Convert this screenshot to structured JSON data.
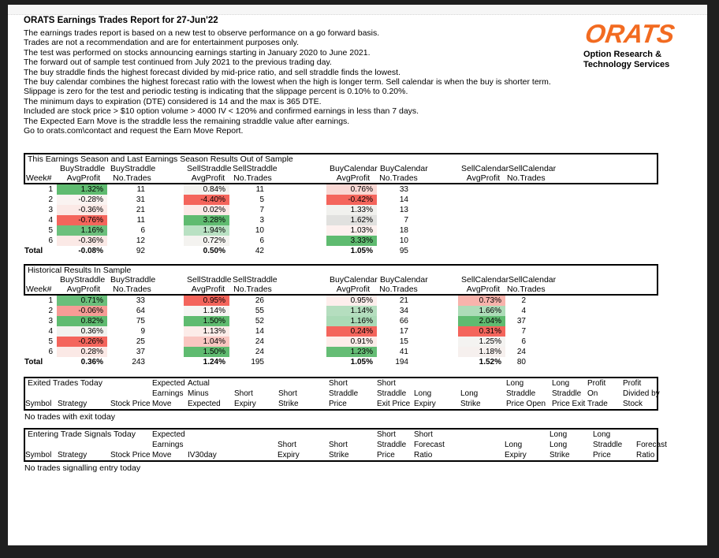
{
  "header": {
    "title": "ORATS Earnings Trades Report for 27-Jun'22",
    "intro_lines": [
      "The earnings trades report is based on a new test to observe performance on a go forward basis.",
      "Trades are not a recommendation and are for entertainment purposes only.",
      "The test was performed on stocks announcing earnings starting in January 2020 to June 2021.",
      "The forward out of sample test continued from July 2021 to the previous trading day.",
      "The buy straddle finds the highest forecast divided by mid-price ratio, and sell straddle finds the lowest.",
      "The buy calendar combines the highest forecast ratio with the lowest when the high is longer term. Sell calendar is when the buy is shorter term.",
      "Slippage is zero for the test and periodic testing is indicating that the slippage percent is 0.10% to 0.20%.",
      "The minimum days to expiration (DTE) considered is 14 and the max is 365 DTE.",
      "Included are stock price > $10 option volume > 4000 IV < 120% and confirmed earnings in less than 7 days.",
      "The Expected Earn Move is the straddle less the remaining straddle value after earnings.",
      "Go to orats.com\\contact and request the Earn Move Report."
    ]
  },
  "logo": {
    "text": "ORATS",
    "tagline1": "Option Research &",
    "tagline2": "Technology Services",
    "color": "#f26b21"
  },
  "results_tables": [
    {
      "title": "This Earnings Season and Last Earnings Season Results Out of Sample",
      "groups": [
        "BuyStraddle",
        "BuyStraddle",
        "SellStraddle",
        "SellStraddle",
        "BuyCalendar",
        "BuyCalendar",
        "SellCalendar",
        "SellCalendar"
      ],
      "sub_headers": [
        "Week#",
        "AvgProfit",
        "No.Trades",
        "AvgProfit",
        "No.Trades",
        "AvgProfit",
        "No.Trades",
        "AvgProfit",
        "No.Trades"
      ],
      "rows": [
        {
          "label": "1",
          "cells": [
            {
              "v": "1.32%",
              "bg": "#5fbb70"
            },
            {
              "v": "11"
            },
            {
              "v": "0.84%",
              "bg": "#f4f3f0"
            },
            {
              "v": "11"
            },
            {
              "v": "0.76%",
              "bg": "#f9d8d4"
            },
            {
              "v": "33"
            },
            {
              "v": ""
            },
            {
              "v": ""
            }
          ]
        },
        {
          "label": "2",
          "cells": [
            {
              "v": "-0.28%",
              "bg": "#faf3f1"
            },
            {
              "v": "31"
            },
            {
              "v": "-4.40%",
              "bg": "#f4655c"
            },
            {
              "v": "5"
            },
            {
              "v": "-0.42%",
              "bg": "#f4655c"
            },
            {
              "v": "14"
            },
            {
              "v": ""
            },
            {
              "v": ""
            }
          ]
        },
        {
          "label": "3",
          "cells": [
            {
              "v": "-0.36%",
              "bg": "#fbe9e6"
            },
            {
              "v": "21"
            },
            {
              "v": "0.02%",
              "bg": "#fce9e7"
            },
            {
              "v": "7"
            },
            {
              "v": "1.33%",
              "bg": "#f1f1ee"
            },
            {
              "v": "13"
            },
            {
              "v": ""
            },
            {
              "v": ""
            }
          ]
        },
        {
          "label": "4",
          "cells": [
            {
              "v": "-0.76%",
              "bg": "#f4655c"
            },
            {
              "v": "11"
            },
            {
              "v": "3.28%",
              "bg": "#5fbb70"
            },
            {
              "v": "3"
            },
            {
              "v": "1.62%",
              "bg": "#e1e1df"
            },
            {
              "v": "7"
            },
            {
              "v": ""
            },
            {
              "v": ""
            }
          ]
        },
        {
          "label": "5",
          "cells": [
            {
              "v": "1.16%",
              "bg": "#6cc07d"
            },
            {
              "v": "6"
            },
            {
              "v": "1.94%",
              "bg": "#b9e1c3"
            },
            {
              "v": "10"
            },
            {
              "v": "1.03%",
              "bg": "#fdf0ee"
            },
            {
              "v": "18"
            },
            {
              "v": ""
            },
            {
              "v": ""
            }
          ]
        },
        {
          "label": "6",
          "cells": [
            {
              "v": "-0.36%",
              "bg": "#fbe9e6"
            },
            {
              "v": "12"
            },
            {
              "v": "0.72%",
              "bg": "#f4f3f0"
            },
            {
              "v": "6"
            },
            {
              "v": "3.33%",
              "bg": "#5fbb70"
            },
            {
              "v": "10"
            },
            {
              "v": ""
            },
            {
              "v": ""
            }
          ]
        }
      ],
      "total": {
        "label": "Total",
        "cells": [
          {
            "v": "-0.08%"
          },
          {
            "v": "92"
          },
          {
            "v": "0.50%"
          },
          {
            "v": "42"
          },
          {
            "v": "1.05%"
          },
          {
            "v": "95"
          },
          {
            "v": ""
          },
          {
            "v": ""
          }
        ]
      }
    },
    {
      "title": "Historical Results In Sample",
      "groups": [
        "BuyStraddle",
        "BuyStraddle",
        "SellStraddle",
        "SellStraddle",
        "BuyCalendar",
        "BuyCalendar",
        "SellCalendar",
        "SellCalendar"
      ],
      "sub_headers": [
        "Week#",
        "AvgProfit",
        "No.Trades",
        "AvgProfit",
        "No.Trades",
        "AvgProfit",
        "No.Trades",
        "AvgProfit",
        "No.Trades"
      ],
      "rows": [
        {
          "label": "1",
          "cells": [
            {
              "v": "0.71%",
              "bg": "#6abf7b"
            },
            {
              "v": "33"
            },
            {
              "v": "0.95%",
              "bg": "#f4655c"
            },
            {
              "v": "26"
            },
            {
              "v": "0.95%",
              "bg": "#fdeeec"
            },
            {
              "v": "21"
            },
            {
              "v": "0.73%",
              "bg": "#f8b3ac"
            },
            {
              "v": "2"
            }
          ]
        },
        {
          "label": "2",
          "cells": [
            {
              "v": "-0.06%",
              "bg": "#f79c96"
            },
            {
              "v": "64"
            },
            {
              "v": "1.14%",
              "bg": "#f6f5f3"
            },
            {
              "v": "55"
            },
            {
              "v": "1.14%",
              "bg": "#b5debf"
            },
            {
              "v": "34"
            },
            {
              "v": "1.66%",
              "bg": "#addcb8"
            },
            {
              "v": "4"
            }
          ]
        },
        {
          "label": "3",
          "cells": [
            {
              "v": "0.82%",
              "bg": "#5fbb70"
            },
            {
              "v": "75"
            },
            {
              "v": "1.50%",
              "bg": "#5fbb70"
            },
            {
              "v": "52"
            },
            {
              "v": "1.16%",
              "bg": "#aadab6"
            },
            {
              "v": "66"
            },
            {
              "v": "2.04%",
              "bg": "#5fbb70"
            },
            {
              "v": "37"
            }
          ]
        },
        {
          "label": "4",
          "cells": [
            {
              "v": "0.36%",
              "bg": "#f2f2ef"
            },
            {
              "v": "9"
            },
            {
              "v": "1.13%",
              "bg": "#fcece9"
            },
            {
              "v": "14"
            },
            {
              "v": "0.24%",
              "bg": "#f4655c"
            },
            {
              "v": "17"
            },
            {
              "v": "0.31%",
              "bg": "#f4655c"
            },
            {
              "v": "7"
            }
          ]
        },
        {
          "label": "5",
          "cells": [
            {
              "v": "-0.26%",
              "bg": "#f4655c"
            },
            {
              "v": "25"
            },
            {
              "v": "1.04%",
              "bg": "#f9c6c1"
            },
            {
              "v": "24"
            },
            {
              "v": "0.91%",
              "bg": "#fdedea"
            },
            {
              "v": "15"
            },
            {
              "v": "1.25%",
              "bg": "#f4f3f1"
            },
            {
              "v": "6"
            }
          ]
        },
        {
          "label": "6",
          "cells": [
            {
              "v": "0.28%",
              "bg": "#fbe9e6"
            },
            {
              "v": "37"
            },
            {
              "v": "1.50%",
              "bg": "#5fbb70"
            },
            {
              "v": "24"
            },
            {
              "v": "1.23%",
              "bg": "#65bd75"
            },
            {
              "v": "41"
            },
            {
              "v": "1.18%",
              "bg": "#f6f0ee"
            },
            {
              "v": "24"
            }
          ]
        }
      ],
      "total": {
        "label": "Total",
        "cells": [
          {
            "v": "0.36%"
          },
          {
            "v": "243"
          },
          {
            "v": "1.24%"
          },
          {
            "v": "195"
          },
          {
            "v": "1.05%"
          },
          {
            "v": "194"
          },
          {
            "v": "1.52%"
          },
          {
            "v": "80"
          }
        ]
      }
    }
  ],
  "exited": {
    "title": "Exited Trades Today",
    "columns": [
      {
        "lines": [
          "",
          "",
          "Symbol"
        ]
      },
      {
        "lines": [
          "",
          "",
          "Strategy"
        ]
      },
      {
        "lines": [
          "",
          "",
          "Stock Price"
        ]
      },
      {
        "lines": [
          "Expected",
          "Earnings",
          "Move"
        ]
      },
      {
        "lines": [
          "Actual",
          "Minus",
          "Expected"
        ]
      },
      {
        "lines": [
          "",
          "Short",
          "Expiry"
        ]
      },
      {
        "lines": [
          "",
          "Short",
          "Strike"
        ]
      },
      {
        "lines": [
          "Short",
          "Straddle",
          "Price"
        ]
      },
      {
        "lines": [
          "Short",
          "Straddle",
          "Exit Price"
        ]
      },
      {
        "lines": [
          "",
          "Long",
          "Expiry"
        ]
      },
      {
        "lines": [
          "",
          "Long",
          "Strike"
        ]
      },
      {
        "lines": [
          "Long",
          "Straddle",
          "Price Open"
        ]
      },
      {
        "lines": [
          "Long",
          "Straddle",
          "Price Exit"
        ]
      },
      {
        "lines": [
          "Profit",
          "On",
          "Trade"
        ]
      },
      {
        "lines": [
          "Profit",
          "Divided by",
          "Stock"
        ]
      }
    ],
    "empty_message": "No trades with exit today"
  },
  "entering": {
    "title": "Entering Trade Signals Today",
    "columns": [
      {
        "lines": [
          "",
          "",
          "Symbol"
        ]
      },
      {
        "lines": [
          "",
          "",
          "Strategy"
        ]
      },
      {
        "lines": [
          "",
          "",
          "Stock Price"
        ]
      },
      {
        "lines": [
          "Expected",
          "Earnings",
          "Move"
        ]
      },
      {
        "lines": [
          "",
          "",
          "IV30day"
        ]
      },
      {
        "lines": [
          "",
          "Short",
          "Expiry"
        ]
      },
      {
        "lines": [
          "",
          "Short",
          "Strike"
        ]
      },
      {
        "lines": [
          "Short",
          "Straddle",
          "Price"
        ]
      },
      {
        "lines": [
          "Short",
          "Forecast",
          "Ratio"
        ]
      },
      {
        "lines": [
          "",
          "Long",
          "Expiry"
        ]
      },
      {
        "lines": [
          "Long",
          "Long",
          "Strike"
        ]
      },
      {
        "lines": [
          "Long",
          "Straddle",
          "Price"
        ]
      },
      {
        "lines": [
          "",
          "Forecast",
          "Ratio"
        ]
      }
    ],
    "empty_message": "No trades signalling entry today"
  }
}
